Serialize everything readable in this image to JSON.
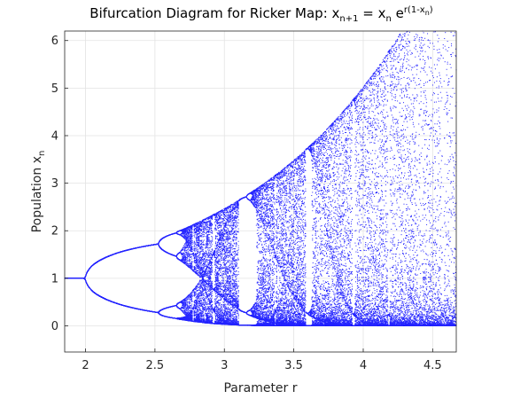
{
  "chart_data": {
    "type": "scatter",
    "title": "Bifurcation Diagram for Ricker Map: x",
    "title_parts": {
      "a": "Bifurcation Diagram for Ricker Map: x",
      "a_sub": "n+1",
      "b": " = x",
      "b_sub": "n",
      "c": " e",
      "c_sup": "r(1-x",
      "c_sup_sub": "n",
      "c_sup_close": ")"
    },
    "xlabel": "Parameter r",
    "ylabel": "Population x",
    "ylabel_sub": "n",
    "xlim": [
      1.85,
      4.67
    ],
    "ylim": [
      -0.55,
      6.2
    ],
    "xticks": [
      2,
      2.5,
      3,
      3.5,
      4,
      4.5
    ],
    "xtick_labels": [
      "2",
      "2.5",
      "3",
      "3.5",
      "4",
      "4.5"
    ],
    "yticks": [
      0,
      1,
      2,
      3,
      4,
      5,
      6
    ],
    "ytick_labels": [
      "0",
      "1",
      "2",
      "3",
      "4",
      "5",
      "6"
    ],
    "grid": true,
    "point_color": "#2525ff",
    "series": [
      {
        "map": "ricker",
        "r_start": 1.85,
        "r_end": 4.67,
        "r_samples": 900,
        "transient_iterations": 300,
        "plotted_iterations": 60,
        "x0": 0.5
      }
    ]
  }
}
